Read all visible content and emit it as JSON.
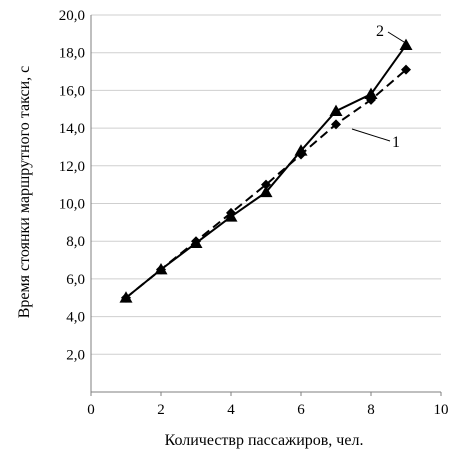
{
  "chart_data": {
    "type": "line",
    "xlabel": "Количеств‌р пассажиров, чел.",
    "ylabel": "Время стоянки маршрутного такси, с",
    "xlim": [
      0,
      10
    ],
    "ylim": [
      0,
      20
    ],
    "x_ticks": [
      "0",
      "2",
      "4",
      "6",
      "8",
      "10"
    ],
    "y_ticks": [
      "2,0",
      "4,0",
      "6,0",
      "8,0",
      "10,0",
      "12,0",
      "14,0",
      "16,0",
      "18,0",
      "20,0"
    ],
    "grid": "horizontal",
    "series": [
      {
        "label": "1",
        "marker": "diamond",
        "line": "dashed",
        "x": [
          1,
          2,
          3,
          4,
          5,
          6,
          7,
          8,
          9
        ],
        "y": [
          5.0,
          6.5,
          8.0,
          9.5,
          11.0,
          12.6,
          14.2,
          15.5,
          17.1
        ]
      },
      {
        "label": "2",
        "marker": "triangle",
        "line": "solid",
        "x": [
          1,
          2,
          3,
          4,
          5,
          6,
          7,
          8,
          9
        ],
        "y": [
          5.0,
          6.5,
          7.9,
          9.3,
          10.6,
          12.8,
          14.9,
          15.8,
          18.4
        ]
      }
    ]
  }
}
